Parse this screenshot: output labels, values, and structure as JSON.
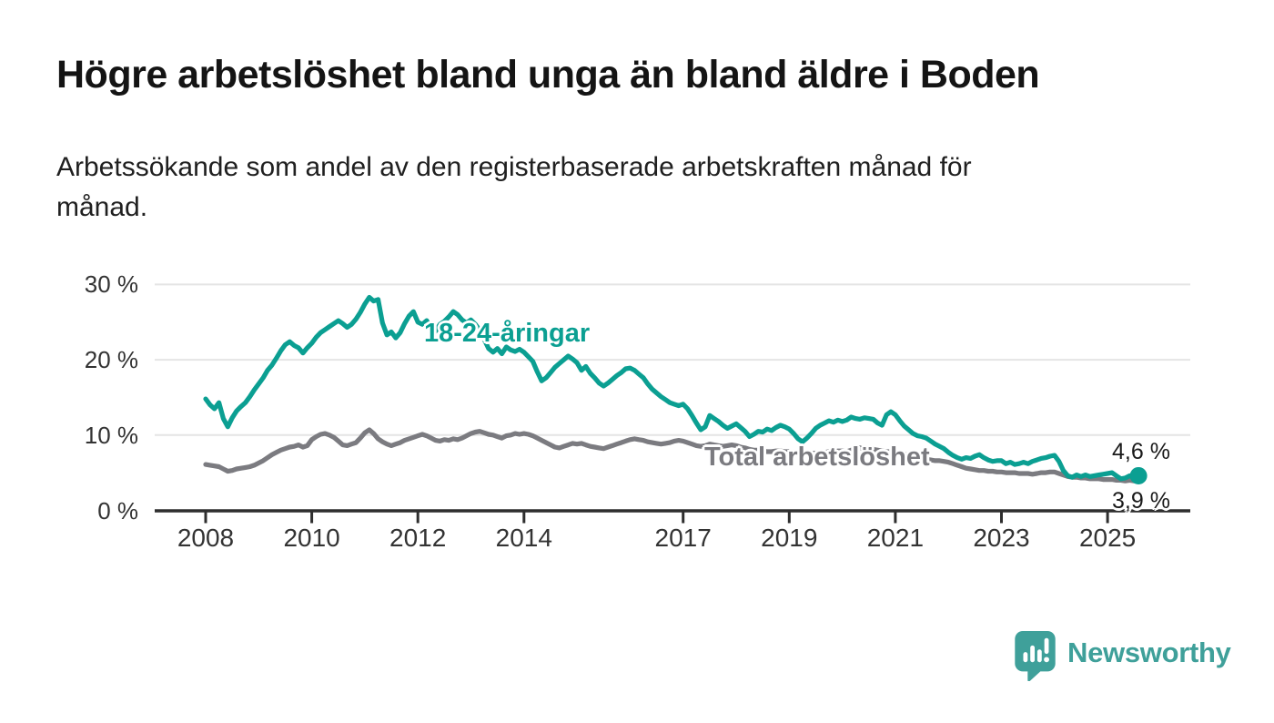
{
  "title": "Högre arbetslöshet bland unga än bland äldre i Boden",
  "subtitle": "Arbetssökande som andel av den registerbaserade arbetskraften månad för\nmånad.",
  "branding": {
    "name": "Newsworthy",
    "logo_icon": "speech-bubble-bar-chart-icon",
    "color": "#3fa09a"
  },
  "colors": {
    "youth_line": "#0b9f92",
    "total_line": "#7b7b80",
    "axis": "#2e2e2e",
    "grid": "#e4e4e4",
    "tick_text": "#333333",
    "title_text": "#141414",
    "end_label_text": "#1a1a1a"
  },
  "chart_data": {
    "type": "line",
    "title": "Högre arbetslöshet bland unga än bland äldre i Boden",
    "subtitle": "Arbetssökande som andel av den registerbaserade arbetskraften månad för månad.",
    "x_start": "2008-01",
    "x_end": "2025-08",
    "x_frequency": "monthly",
    "x_axis": {
      "tick_years": [
        2008,
        2010,
        2012,
        2014,
        2017,
        2019,
        2021,
        2023,
        2025
      ]
    },
    "y_axis": {
      "tick_values": [
        0,
        10,
        20,
        30
      ],
      "tick_labels": [
        "0 %",
        "10 %",
        "20 %",
        "30 %"
      ],
      "range": [
        0,
        31
      ],
      "unit": "%",
      "grid": true
    },
    "legend_position": "inline-labels",
    "series": [
      {
        "name": "18-24-åringar",
        "color": "#0b9f92",
        "end_label": "4,6 %",
        "end_value": 4.6,
        "end_dot": true,
        "values": [
          14.8,
          14.0,
          13.5,
          14.3,
          12.2,
          11.1,
          12.3,
          13.2,
          13.8,
          14.3,
          15.1,
          16.0,
          16.8,
          17.6,
          18.6,
          19.3,
          20.2,
          21.2,
          22.0,
          22.4,
          21.9,
          21.6,
          20.9,
          21.6,
          22.2,
          23.0,
          23.6,
          24.0,
          24.4,
          24.8,
          25.2,
          24.8,
          24.3,
          24.7,
          25.4,
          26.3,
          27.4,
          28.3,
          27.8,
          28.0,
          24.9,
          23.3,
          23.7,
          22.9,
          23.6,
          24.8,
          25.8,
          26.4,
          25.0,
          24.7,
          25.2,
          24.1,
          23.8,
          24.7,
          25.1,
          25.7,
          26.4,
          26.0,
          25.3,
          24.9,
          25.3,
          24.7,
          23.9,
          22.7,
          21.5,
          21.0,
          21.5,
          20.8,
          21.7,
          21.3,
          21.1,
          21.4,
          21.0,
          20.4,
          19.8,
          18.4,
          17.2,
          17.6,
          18.3,
          19.0,
          19.5,
          20.0,
          20.5,
          20.1,
          19.6,
          18.6,
          19.1,
          18.2,
          17.6,
          16.9,
          16.5,
          16.9,
          17.4,
          17.9,
          18.3,
          18.8,
          18.9,
          18.6,
          18.1,
          17.6,
          16.8,
          16.1,
          15.6,
          15.1,
          14.7,
          14.3,
          14.1,
          13.9,
          14.1,
          13.5,
          12.6,
          11.6,
          10.7,
          11.1,
          12.6,
          12.2,
          11.8,
          11.3,
          10.9,
          11.2,
          11.5,
          11.0,
          10.5,
          9.8,
          10.1,
          10.5,
          10.4,
          10.8,
          10.6,
          11.0,
          11.3,
          11.1,
          10.8,
          10.2,
          9.5,
          9.1,
          9.6,
          10.2,
          10.9,
          11.3,
          11.6,
          11.9,
          11.7,
          12.0,
          11.8,
          12.0,
          12.4,
          12.2,
          12.1,
          12.3,
          12.2,
          12.1,
          11.6,
          11.3,
          12.7,
          13.1,
          12.7,
          11.9,
          11.2,
          10.7,
          10.2,
          9.9,
          9.8,
          9.6,
          9.2,
          8.8,
          8.5,
          8.2,
          7.7,
          7.3,
          7.0,
          6.8,
          7.0,
          6.9,
          7.2,
          7.4,
          7.0,
          6.7,
          6.5,
          6.6,
          6.6,
          6.2,
          6.4,
          6.1,
          6.2,
          6.4,
          6.2,
          6.5,
          6.7,
          6.9,
          7.0,
          7.2,
          7.3,
          6.5,
          5.3,
          4.6,
          4.4,
          4.7,
          4.5,
          4.7,
          4.5,
          4.6,
          4.7,
          4.8,
          4.9,
          5.0,
          4.6,
          4.2,
          4.3,
          4.6,
          4.4,
          4.6
        ]
      },
      {
        "name": "Total arbetslöshet",
        "color": "#7b7b80",
        "end_label": "3,9 %",
        "end_value": 3.9,
        "end_dot": false,
        "values": [
          6.1,
          6.0,
          5.9,
          5.8,
          5.5,
          5.2,
          5.3,
          5.5,
          5.6,
          5.7,
          5.8,
          6.0,
          6.3,
          6.6,
          7.0,
          7.4,
          7.7,
          8.0,
          8.2,
          8.4,
          8.5,
          8.7,
          8.4,
          8.6,
          9.4,
          9.8,
          10.1,
          10.2,
          10.0,
          9.7,
          9.2,
          8.7,
          8.6,
          8.8,
          9.0,
          9.6,
          10.3,
          10.7,
          10.2,
          9.5,
          9.1,
          8.8,
          8.6,
          8.8,
          9.0,
          9.3,
          9.5,
          9.7,
          9.9,
          10.1,
          9.9,
          9.6,
          9.3,
          9.2,
          9.4,
          9.3,
          9.5,
          9.4,
          9.6,
          9.9,
          10.2,
          10.4,
          10.5,
          10.3,
          10.1,
          10.0,
          9.8,
          9.6,
          9.9,
          10.0,
          10.2,
          10.1,
          10.2,
          10.1,
          9.9,
          9.6,
          9.3,
          9.0,
          8.7,
          8.4,
          8.3,
          8.5,
          8.7,
          8.9,
          8.8,
          8.9,
          8.7,
          8.5,
          8.4,
          8.3,
          8.2,
          8.4,
          8.6,
          8.8,
          9.0,
          9.2,
          9.4,
          9.5,
          9.4,
          9.3,
          9.1,
          9.0,
          8.9,
          8.8,
          8.9,
          9.0,
          9.2,
          9.3,
          9.2,
          9.0,
          8.8,
          8.6,
          8.5,
          8.6,
          8.8,
          8.7,
          8.6,
          8.5,
          8.6,
          8.7,
          8.6,
          8.4,
          8.3,
          8.1,
          8.0,
          8.0,
          7.9,
          7.8,
          7.8,
          7.9,
          7.9,
          7.8,
          7.8,
          7.7,
          7.6,
          7.5,
          7.5,
          7.6,
          7.6,
          7.7,
          7.7,
          7.8,
          7.8,
          7.9,
          7.9,
          7.8,
          8.0,
          8.2,
          8.3,
          8.3,
          8.2,
          8.1,
          8.0,
          7.9,
          7.8,
          7.8,
          7.7,
          7.6,
          7.5,
          7.3,
          7.2,
          7.0,
          6.9,
          6.8,
          6.7,
          6.6,
          6.6,
          6.5,
          6.4,
          6.2,
          6.0,
          5.8,
          5.6,
          5.5,
          5.4,
          5.3,
          5.3,
          5.2,
          5.2,
          5.1,
          5.1,
          5.0,
          5.0,
          5.0,
          4.9,
          4.9,
          4.9,
          4.8,
          4.9,
          5.0,
          5.0,
          5.1,
          5.1,
          4.9,
          4.7,
          4.5,
          4.4,
          4.4,
          4.3,
          4.3,
          4.2,
          4.2,
          4.2,
          4.1,
          4.1,
          4.1,
          4.0,
          4.0,
          3.9,
          4.0,
          3.9,
          3.9
        ]
      }
    ]
  }
}
